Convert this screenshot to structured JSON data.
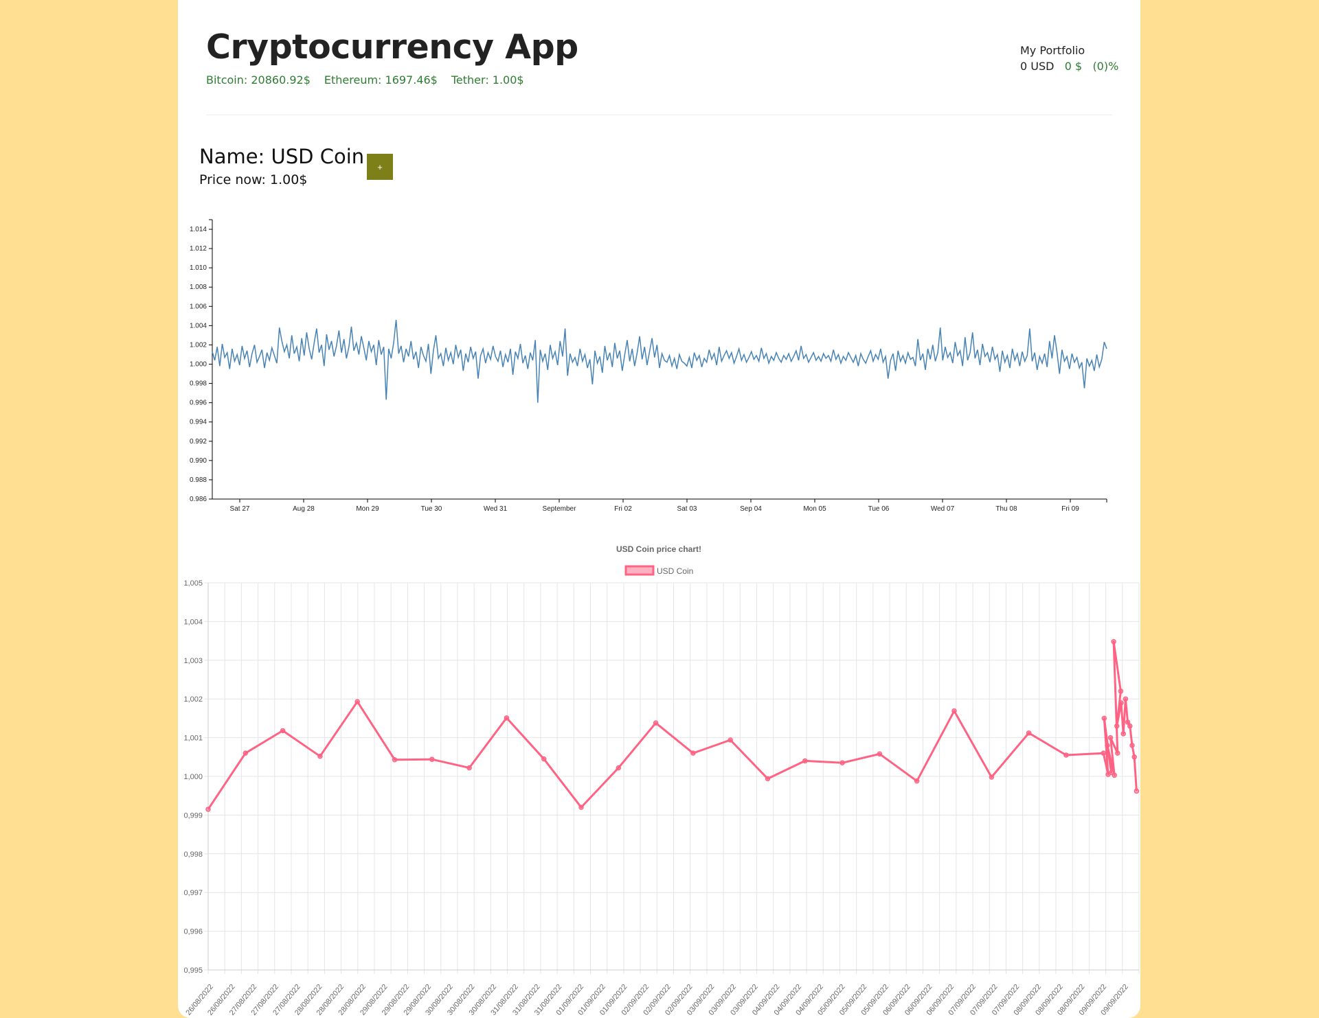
{
  "app": {
    "title": "Cryptocurrency App"
  },
  "ticker": [
    {
      "label": "Bitcoin: 20860.92$"
    },
    {
      "label": "Ethereum: 1697.46$"
    },
    {
      "label": "Tether: 1.00$"
    }
  ],
  "portfolio": {
    "title": "My Portfolio",
    "value": "0 USD",
    "change": "0 $",
    "change_pct": "(0)%"
  },
  "coin": {
    "name": "Name: USD Coin",
    "price": "Price now: 1.00$",
    "add_label": "+"
  },
  "colors": {
    "background": "#ffdf91",
    "ticker_green": "#2e7d32",
    "add_button": "#7d8019",
    "line_blue": "#4682b4",
    "line_pink": "#ff6384"
  },
  "chart_data": [
    {
      "type": "line",
      "title": "",
      "x_tick_labels": [
        "Sat 27",
        "Aug 28",
        "Mon 29",
        "Tue 30",
        "Wed 31",
        "September",
        "Fri 02",
        "Sat 03",
        "Sep 04",
        "Mon 05",
        "Tue 06",
        "Wed 07",
        "Thu 08",
        "Fri 09"
      ],
      "y_tick_labels": [
        "1.014",
        "1.012",
        "1.010",
        "1.008",
        "1.006",
        "1.004",
        "1.002",
        "1.000",
        "0.998",
        "0.996",
        "0.994",
        "0.992",
        "0.990",
        "0.988",
        "0.986"
      ],
      "ylim": [
        0.986,
        1.015
      ],
      "series_note_x": "hourly, 2022-08-26 to 2022-09-09",
      "values": [
        1.0013,
        1.0004,
        1.0018,
        0.9998,
        1.0021,
        1.0007,
        1.0012,
        0.9995,
        1.0016,
        1.0003,
        1.001,
        0.9999,
        1.0019,
        1.0006,
        1.0014,
        0.9997,
        1.0011,
        1.002,
        1.0002,
        1.0008,
        1.0015,
        0.9996,
        1.0012,
        1.0004,
        1.0017,
        1.0009,
        1.0001,
        1.0038,
        1.0024,
        1.0013,
        1.002,
        1.0006,
        1.003,
        1.0011,
        1.0018,
        1.0003,
        1.0027,
        1.0009,
        1.0033,
        1.0016,
        1.0005,
        1.0022,
        1.0037,
        1.0012,
        1.002,
        0.9998,
        1.0031,
        1.0015,
        1.0024,
        1.0008,
        1.0019,
        1.0035,
        1.0012,
        1.0026,
        1.0006,
        1.0018,
        1.0039,
        1.0014,
        1.0022,
        1.001,
        1.0029,
        1.0017,
        1.0004,
        1.0024,
        1.0013,
        1.002,
        0.9999,
        1.0025,
        1.001,
        1.0018,
        0.9963,
        1.0016,
        1.0006,
        1.0022,
        1.0046,
        1.0011,
        1.0019,
        1.0002,
        1.0016,
        1.0008,
        1.0024,
        1.0005,
        1.0013,
        0.9996,
        1.0018,
        1.0009,
        1.0003,
        1.0021,
        0.999,
        1.0014,
        1.003,
        1.0006,
        1.0011,
        0.9998,
        1.0017,
        1.0004,
        1.0012,
        1.0,
        1.002,
        1.0007,
        1.0015,
        0.9993,
        1.0011,
        1.0002,
        1.0018,
        1.0006,
        1.0013,
        0.9985,
        1.0009,
        1.0016,
        1.0001,
        1.0012,
        1.0005,
        1.0019,
        1.0008,
        1.0003,
        1.0014,
        0.9997,
        1.001,
        1.0002,
        1.0016,
        0.9989,
        1.0013,
        1.0006,
        1.0021,
        1.0001,
        1.0009,
        0.9995,
        1.0012,
        1.0004,
        1.0025,
        0.996,
        1.0015,
        1.0003,
        1.0011,
        0.9994,
        1.002,
        1.0006,
        1.0013,
        0.9999,
        1.0024,
        1.0008,
        1.0037,
        0.9988,
        1.0011,
        1.0002,
        1.0007,
        0.9998,
        1.0016,
        1.0003,
        1.001,
        0.9996,
        1.0005,
        0.9979,
        1.0014,
        1.0001,
        1.0008,
        0.9991,
        1.0019,
        1.0004,
        1.0012,
        0.9997,
        1.0022,
        1.0006,
        1.0014,
        0.9993,
        1.001,
        1.0025,
        1.0003,
        1.0016,
        0.9998,
        1.0012,
        1.0029,
        1.0005,
        1.0018,
        0.9999,
        1.0013,
        1.0027,
        1.0007,
        1.002,
        0.9996,
        1.0011,
        1.0004,
        1.0002,
        1.0009,
        0.9998,
        1.0006,
        0.9995,
        1.001,
        1.0003,
        1.0001,
        0.9998,
        1.0007,
        0.9996,
        1.0012,
        1.0004,
        1.0009,
        0.9997,
        1.0006,
        1.0002,
        1.0015,
        1.0005,
        1.0011,
        0.9999,
        1.0018,
        1.0003,
        1.0009,
        1.0014,
        1.0006,
        1.0012,
        1.0001,
        1.0008,
        1.0016,
        1.0004,
        1.001,
        1.0002,
        1.0007,
        1.0013,
        1.0005,
        1.0009,
        1.0003,
        1.0017,
        1.0006,
        1.0011,
        1.0001,
        1.0008,
        1.0004,
        1.0012,
        1.0006,
        1.0002,
        1.0009,
        1.0005,
        1.0011,
        1.0003,
        1.0008,
        1.0014,
        1.0004,
        1.0019,
        1.0006,
        1.001,
        1.0002,
        1.0007,
        1.0012,
        1.0004,
        1.0008,
        1.0003,
        1.0011,
        1.0006,
        1.0009,
        1.0003,
        1.0015,
        1.0005,
        1.001,
        1.0001,
        1.0008,
        1.0004,
        1.0012,
        1.0007,
        1.0002,
        1.0009,
        0.9998,
        1.0011,
        1.0005,
        1.0001,
        1.0008,
        1.0014,
        1.0003,
        1.001,
        1.0005,
        1.0016,
        1.0002,
        1.0008,
        0.9985,
        1.0004,
        1.0011,
        0.9993,
        1.0014,
        1.0003,
        1.0009,
        1.0001,
        1.0012,
        1.0005,
        1.0007,
        0.9998,
        1.0026,
        1.0004,
        1.0011,
        0.9994,
        1.0016,
        1.0005,
        1.002,
        1.0003,
        1.0012,
        1.0038,
        1.0004,
        1.0018,
        1.0007,
        1.0012,
        1.0001,
        1.0023,
        1.0009,
        1.0014,
        0.9998,
        1.0028,
        1.0004,
        1.0012,
        1.0033,
        1.0006,
        1.0015,
        0.9999,
        1.0021,
        1.0008,
        1.0012,
        1.0002,
        1.0018,
        1.0005,
        1.001,
        0.9992,
        1.0014,
        1.0002,
        1.0009,
        0.9996,
        1.0016,
        1.0004,
        1.0011,
        0.9998,
        1.0013,
        1.0003,
        1.0009,
        1.0037,
        1.0003,
        1.0012,
        0.9994,
        1.0008,
        1.0001,
        1.0011,
        0.9997,
        1.0024,
        1.0006,
        1.003,
        1.0012,
        0.999,
        1.0015,
        1.0003,
        1.0008,
        0.9995,
        1.0011,
        1.0002,
        1.0007,
        0.9996,
        1.0002,
        0.9975,
        1.0006,
        0.9998,
        1.0004,
        0.9993,
        1.001,
        0.9997,
        1.0005,
        1.0023,
        1.0016
      ]
    },
    {
      "type": "line",
      "title": "USD Coin price chart!",
      "legend": [
        "USD Coin"
      ],
      "legend_position": "top",
      "grid": true,
      "ylim": [
        0.995,
        1.005
      ],
      "y_tick_labels": [
        "1,005",
        "1,004",
        "1,003",
        "1,002",
        "1,001",
        "1,000",
        "0,999",
        "0,998",
        "0,997",
        "0,996",
        "0,995"
      ],
      "x_tick_labels": [
        "26/08/2022",
        "26/08/2022",
        "27/08/2022",
        "27/08/2022",
        "27/08/2022",
        "28/08/2022",
        "28/08/2022",
        "28/08/2022",
        "29/08/2022",
        "29/08/2022",
        "29/08/2022",
        "30/08/2022",
        "30/08/2022",
        "30/08/2022",
        "31/08/2022",
        "31/08/2022",
        "31/08/2022",
        "01/09/2022",
        "01/09/2022",
        "01/09/2022",
        "02/09/2022",
        "02/09/2022",
        "02/09/2022",
        "03/09/2022",
        "03/09/2022",
        "03/09/2022",
        "04/09/2022",
        "04/09/2022",
        "04/09/2022",
        "05/09/2022",
        "05/09/2022",
        "05/09/2022",
        "06/09/2022",
        "06/09/2022",
        "06/09/2022",
        "07/09/2022",
        "07/09/2022",
        "07/09/2022",
        "08/09/2022",
        "08/09/2022",
        "08/09/2022",
        "09/09/2022",
        "09/09/2022"
      ],
      "series": [
        {
          "name": "USD Coin",
          "values": [
            0.99915,
            1.0006,
            1.00118,
            1.00052,
            1.00193,
            1.00043,
            1.00044,
            1.00022,
            1.00151,
            1.00045,
            0.9992,
            1.00022,
            1.00138,
            1.0006,
            1.00094,
            0.99994,
            1.0004,
            1.00035,
            1.00058,
            0.99988,
            1.00169,
            0.99998,
            1.00112,
            1.00055,
            1.0006,
            1.00005,
            1.0015,
            1.0001,
            1.0008,
            1.00003,
            1.001,
            1.0006,
            1.00348,
            1.0022,
            1.0013,
            1.0019,
            1.0011,
            1.002,
            1.0014,
            1.0013,
            1.0008,
            1.0005,
            0.99962
          ]
        }
      ]
    }
  ]
}
